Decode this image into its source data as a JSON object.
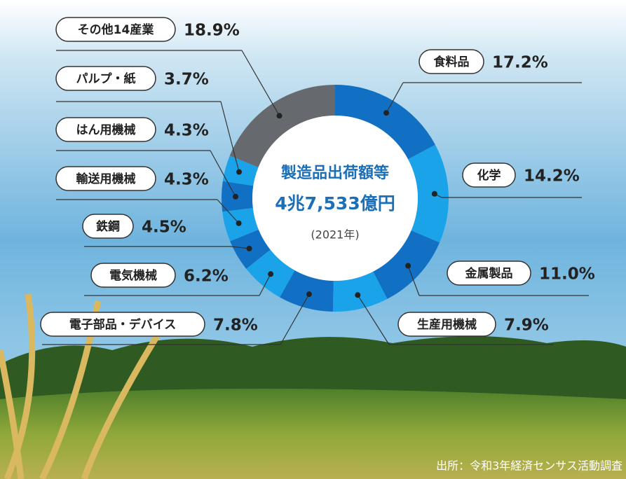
{
  "chart_data": {
    "type": "pie",
    "title": "製造品出荷額等",
    "total_label": "4兆7,533億円",
    "year_label": "(2021年)",
    "source": "出所：令和3年経済センサス活動調査",
    "categories": [
      "食料品",
      "化学",
      "金属製品",
      "生産用機械",
      "電子部品・デバイス",
      "電気機械",
      "鉄鋼",
      "輸送用機械",
      "はん用機械",
      "パルプ・紙",
      "その他14産業"
    ],
    "values": [
      17.2,
      14.2,
      11.0,
      7.9,
      7.8,
      6.2,
      4.5,
      4.3,
      4.3,
      3.7,
      18.9
    ],
    "value_labels": [
      "17.2%",
      "14.2%",
      "11.0%",
      "7.9%",
      "7.8%",
      "6.2%",
      "4.5%",
      "4.3%",
      "4.3%",
      "3.7%",
      "18.9%"
    ],
    "colors": [
      "#1270c4",
      "#1aa3e8",
      "#1270c4",
      "#1aa3e8",
      "#1270c4",
      "#1aa3e8",
      "#1270c4",
      "#1aa3e8",
      "#1270c4",
      "#1aa3e8",
      "#666a6e"
    ]
  }
}
